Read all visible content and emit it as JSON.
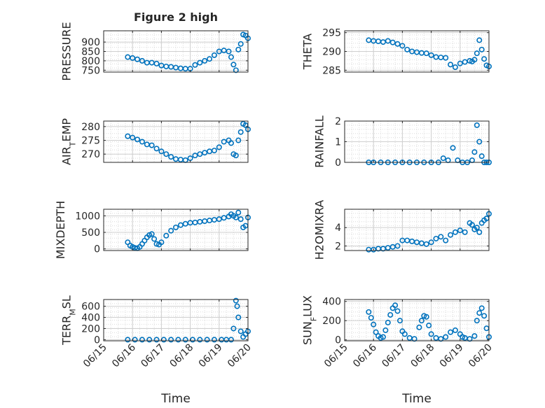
{
  "figure": {
    "title": "Figure 2 high",
    "xlabel": "Time"
  },
  "style": {
    "marker_color": "#0072BD",
    "axis_color": "#262626",
    "grid_color": "#dcdcdc",
    "background": "#ffffff"
  },
  "chart_data": [
    {
      "type": "scatter",
      "marker": "circle-open",
      "ylabel": "PRESSURE",
      "xlim": [
        "06/15",
        "06/20"
      ],
      "ylim": [
        740,
        960
      ],
      "yticks": [
        750,
        800,
        850,
        900
      ],
      "show_xticklabels": false,
      "x": [
        "06/15 20:00",
        "06/16 00:00",
        "06/16 04:00",
        "06/16 08:00",
        "06/16 12:00",
        "06/16 16:00",
        "06/16 20:00",
        "06/17 00:00",
        "06/17 04:00",
        "06/17 08:00",
        "06/17 12:00",
        "06/17 16:00",
        "06/17 20:00",
        "06/18 00:00",
        "06/18 04:00",
        "06/18 08:00",
        "06/18 12:00",
        "06/18 16:00",
        "06/18 20:00",
        "06/19 00:00",
        "06/19 04:00",
        "06/19 08:00",
        "06/19 10:00",
        "06/19 12:00",
        "06/19 14:00",
        "06/19 16:00",
        "06/19 18:00",
        "06/19 20:00",
        "06/19 22:00",
        "06/20 00:00"
      ],
      "y": [
        820,
        815,
        808,
        800,
        790,
        790,
        785,
        775,
        770,
        768,
        764,
        760,
        758,
        758,
        778,
        790,
        800,
        810,
        830,
        850,
        855,
        850,
        820,
        780,
        750,
        860,
        890,
        940,
        935,
        920
      ]
    },
    {
      "type": "scatter",
      "marker": "circle-open",
      "ylabel": "THETA",
      "xlim": [
        "06/15",
        "06/20"
      ],
      "ylim": [
        284.5,
        295.5
      ],
      "yticks": [
        285,
        290,
        295
      ],
      "show_xticklabels": false,
      "x": [
        "06/15 20:00",
        "06/16 00:00",
        "06/16 04:00",
        "06/16 08:00",
        "06/16 12:00",
        "06/16 16:00",
        "06/16 20:00",
        "06/17 00:00",
        "06/17 04:00",
        "06/17 08:00",
        "06/17 12:00",
        "06/17 16:00",
        "06/17 20:00",
        "06/18 00:00",
        "06/18 04:00",
        "06/18 08:00",
        "06/18 12:00",
        "06/18 16:00",
        "06/18 20:00",
        "06/19 00:00",
        "06/19 04:00",
        "06/19 08:00",
        "06/19 10:00",
        "06/19 12:00",
        "06/19 14:00",
        "06/19 16:00",
        "06/19 18:00",
        "06/19 20:00",
        "06/19 22:00",
        "06/20 00:00"
      ],
      "y": [
        293,
        292.8,
        292.7,
        292.5,
        292.8,
        292.4,
        292,
        291.5,
        290.5,
        290,
        289.8,
        289.6,
        289.5,
        289,
        288.5,
        288.4,
        288.3,
        286.5,
        285.8,
        286.8,
        287.2,
        287.5,
        287.3,
        287.8,
        289.5,
        293,
        290.5,
        288,
        286.3,
        286
      ]
    },
    {
      "type": "scatter",
      "marker": "circle-open",
      "ylabel": "AIR_TEMP",
      "xlim": [
        "06/15",
        "06/20"
      ],
      "ylim": [
        267,
        282
      ],
      "yticks": [
        270,
        275,
        280
      ],
      "show_xticklabels": false,
      "x": [
        "06/15 20:00",
        "06/16 00:00",
        "06/16 04:00",
        "06/16 08:00",
        "06/16 12:00",
        "06/16 16:00",
        "06/16 20:00",
        "06/17 00:00",
        "06/17 04:00",
        "06/17 08:00",
        "06/17 12:00",
        "06/17 16:00",
        "06/17 20:00",
        "06/18 00:00",
        "06/18 04:00",
        "06/18 08:00",
        "06/18 12:00",
        "06/18 16:00",
        "06/18 20:00",
        "06/19 00:00",
        "06/19 04:00",
        "06/19 08:00",
        "06/19 10:00",
        "06/19 12:00",
        "06/19 14:00",
        "06/19 16:00",
        "06/19 18:00",
        "06/19 20:00",
        "06/19 22:00",
        "06/20 00:00"
      ],
      "y": [
        276.5,
        276,
        275.3,
        274.5,
        273.5,
        273.2,
        272,
        271,
        270,
        269,
        268.2,
        268,
        267.8,
        268.5,
        269.5,
        270,
        270.5,
        271,
        271.3,
        272.5,
        274.5,
        275,
        274,
        270,
        269.5,
        275,
        278,
        281,
        280.5,
        279
      ]
    },
    {
      "type": "scatter",
      "marker": "circle-open",
      "ylabel": "RAINFALL",
      "xlim": [
        "06/15",
        "06/20"
      ],
      "ylim": [
        0,
        2
      ],
      "yticks": [
        0,
        1,
        2
      ],
      "show_xticklabels": false,
      "x": [
        "06/15 20:00",
        "06/16 00:00",
        "06/16 06:00",
        "06/16 12:00",
        "06/16 18:00",
        "06/17 00:00",
        "06/17 06:00",
        "06/17 12:00",
        "06/17 18:00",
        "06/18 00:00",
        "06/18 06:00",
        "06/18 10:00",
        "06/18 14:00",
        "06/18 18:00",
        "06/18 22:00",
        "06/19 02:00",
        "06/19 06:00",
        "06/19 10:00",
        "06/19 12:00",
        "06/19 14:00",
        "06/19 16:00",
        "06/19 18:00",
        "06/19 20:00",
        "06/19 22:00",
        "06/20 00:00"
      ],
      "y": [
        0,
        0,
        0,
        0,
        0,
        0,
        0,
        0,
        0,
        0,
        0,
        0.2,
        0.1,
        0.7,
        0.1,
        0,
        0,
        0.1,
        0.5,
        1.8,
        1,
        0.3,
        0,
        0,
        0
      ]
    },
    {
      "type": "scatter",
      "marker": "circle-open",
      "ylabel": "MIXDEPTH",
      "xlim": [
        "06/15",
        "06/20"
      ],
      "ylim": [
        -50,
        1200
      ],
      "yticks": [
        0,
        500,
        1000
      ],
      "show_xticklabels": false,
      "x": [
        "06/15 20:00",
        "06/15 22:00",
        "06/16 00:00",
        "06/16 02:00",
        "06/16 04:00",
        "06/16 06:00",
        "06/16 08:00",
        "06/16 10:00",
        "06/16 12:00",
        "06/16 14:00",
        "06/16 16:00",
        "06/16 18:00",
        "06/16 20:00",
        "06/16 22:00",
        "06/17 00:00",
        "06/17 04:00",
        "06/17 08:00",
        "06/17 12:00",
        "06/17 16:00",
        "06/17 20:00",
        "06/18 00:00",
        "06/18 04:00",
        "06/18 08:00",
        "06/18 12:00",
        "06/18 16:00",
        "06/18 20:00",
        "06/19 00:00",
        "06/19 04:00",
        "06/19 08:00",
        "06/19 10:00",
        "06/19 12:00",
        "06/19 14:00",
        "06/19 16:00",
        "06/19 18:00",
        "06/19 20:00",
        "06/19 22:00",
        "06/20 00:00"
      ],
      "y": [
        200,
        100,
        60,
        30,
        20,
        60,
        150,
        250,
        350,
        420,
        450,
        300,
        150,
        130,
        200,
        400,
        550,
        650,
        720,
        760,
        790,
        800,
        820,
        840,
        860,
        880,
        900,
        940,
        980,
        1050,
        1000,
        950,
        1100,
        900,
        650,
        700,
        950
      ]
    },
    {
      "type": "scatter",
      "marker": "circle-open",
      "ylabel": "H2OMIXRA",
      "xlim": [
        "06/15",
        "06/20"
      ],
      "ylim": [
        1.5,
        6
      ],
      "yticks": [
        2,
        4
      ],
      "show_xticklabels": false,
      "x": [
        "06/15 20:00",
        "06/16 00:00",
        "06/16 04:00",
        "06/16 08:00",
        "06/16 12:00",
        "06/16 16:00",
        "06/16 20:00",
        "06/17 00:00",
        "06/17 04:00",
        "06/17 08:00",
        "06/17 12:00",
        "06/17 16:00",
        "06/17 20:00",
        "06/18 00:00",
        "06/18 04:00",
        "06/18 08:00",
        "06/18 12:00",
        "06/18 16:00",
        "06/18 20:00",
        "06/19 00:00",
        "06/19 04:00",
        "06/19 08:00",
        "06/19 10:00",
        "06/19 12:00",
        "06/19 14:00",
        "06/19 16:00",
        "06/19 18:00",
        "06/19 20:00",
        "06/19 22:00",
        "06/20 00:00"
      ],
      "y": [
        1.6,
        1.6,
        1.7,
        1.7,
        1.8,
        1.9,
        2,
        2.6,
        2.6,
        2.5,
        2.4,
        2.3,
        2.2,
        2.4,
        2.8,
        3,
        2.6,
        3.2,
        3.5,
        3.7,
        3.5,
        4.5,
        4.3,
        3.8,
        4,
        3.5,
        4.5,
        4.8,
        5,
        5.5
      ]
    },
    {
      "type": "scatter",
      "marker": "circle-open",
      "ylabel": "TERR_MSL",
      "xlim": [
        "06/15",
        "06/20"
      ],
      "ylim": [
        -20,
        720
      ],
      "yticks": [
        0,
        200,
        400,
        600
      ],
      "show_xticklabels": true,
      "x": [
        "06/15 20:00",
        "06/16 02:00",
        "06/16 08:00",
        "06/16 14:00",
        "06/16 20:00",
        "06/17 02:00",
        "06/17 08:00",
        "06/17 14:00",
        "06/17 20:00",
        "06/18 02:00",
        "06/18 08:00",
        "06/18 14:00",
        "06/18 20:00",
        "06/19 02:00",
        "06/19 06:00",
        "06/19 10:00",
        "06/19 12:00",
        "06/19 14:00",
        "06/19 15:00",
        "06/19 16:00",
        "06/19 18:00",
        "06/19 20:00",
        "06/19 22:00",
        "06/20 00:00"
      ],
      "y": [
        0,
        0,
        0,
        0,
        0,
        0,
        0,
        0,
        0,
        0,
        0,
        0,
        0,
        0,
        0,
        0,
        200,
        700,
        600,
        400,
        150,
        50,
        100,
        150
      ]
    },
    {
      "type": "scatter",
      "marker": "circle-open",
      "ylabel": "SUN_FLUX",
      "xlim": [
        "06/15",
        "06/20"
      ],
      "ylim": [
        -10,
        420
      ],
      "yticks": [
        0,
        200,
        400
      ],
      "show_xticklabels": true,
      "x": [
        "06/15 20:00",
        "06/15 22:00",
        "06/16 00:00",
        "06/16 02:00",
        "06/16 04:00",
        "06/16 06:00",
        "06/16 08:00",
        "06/16 10:00",
        "06/16 12:00",
        "06/16 14:00",
        "06/16 16:00",
        "06/16 18:00",
        "06/16 20:00",
        "06/16 22:00",
        "06/17 00:00",
        "06/17 02:00",
        "06/17 06:00",
        "06/17 10:00",
        "06/17 14:00",
        "06/17 16:00",
        "06/17 18:00",
        "06/17 20:00",
        "06/17 22:00",
        "06/18 00:00",
        "06/18 04:00",
        "06/18 08:00",
        "06/18 12:00",
        "06/18 16:00",
        "06/18 20:00",
        "06/19 00:00",
        "06/19 02:00",
        "06/19 04:00",
        "06/19 08:00",
        "06/19 12:00",
        "06/19 14:00",
        "06/19 16:00",
        "06/19 18:00",
        "06/19 20:00",
        "06/19 22:00",
        "06/20 00:00"
      ],
      "y": [
        290,
        230,
        160,
        80,
        40,
        20,
        30,
        100,
        180,
        260,
        330,
        360,
        300,
        200,
        90,
        60,
        20,
        10,
        130,
        200,
        250,
        240,
        150,
        60,
        20,
        10,
        30,
        80,
        100,
        60,
        30,
        20,
        10,
        40,
        200,
        280,
        330,
        250,
        120,
        30
      ]
    }
  ]
}
